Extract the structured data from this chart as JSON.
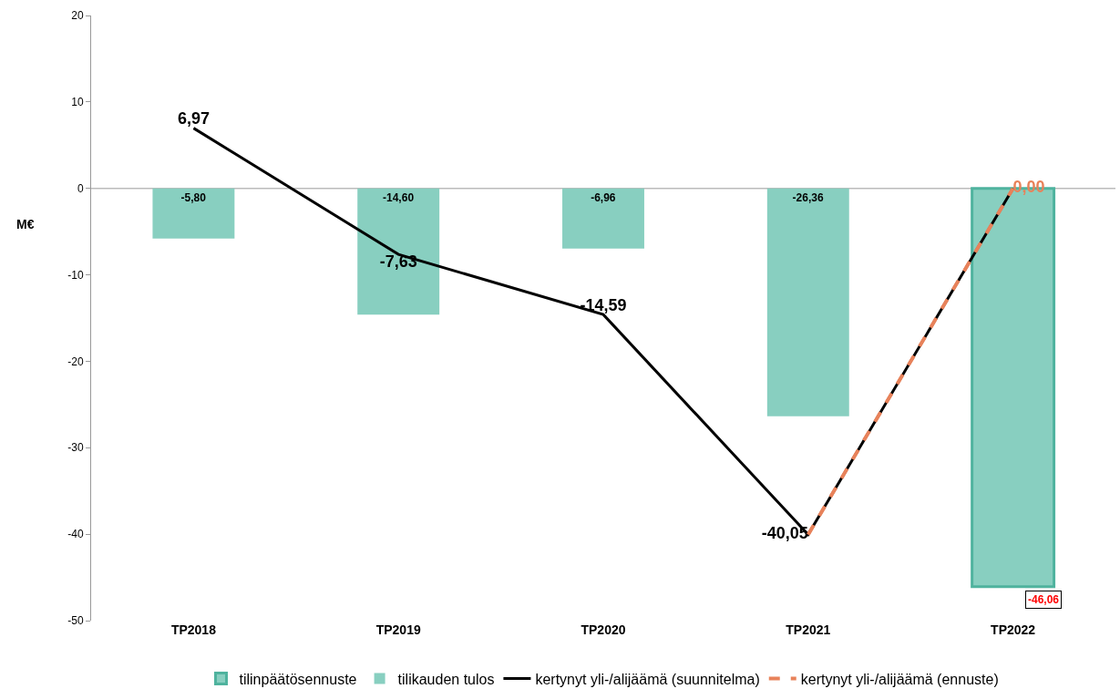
{
  "chart_data": {
    "type": "bar",
    "ylabel": "M€",
    "categories": [
      "TP2018",
      "TP2019",
      "TP2020",
      "TP2021",
      "TP2022"
    ],
    "series": [
      {
        "name": "tilinpäätösennuste",
        "color": "#88cfc0",
        "values": [
          null,
          null,
          null,
          null,
          -46.06
        ],
        "value_labels": [
          null,
          null,
          null,
          null,
          "-46,06"
        ]
      },
      {
        "name": "tilikauden tulos",
        "color": "#88cfc0",
        "values": [
          -5.8,
          -14.6,
          -6.96,
          -26.36,
          null
        ],
        "value_labels": [
          "-5,80",
          "-14,60",
          "-6,96",
          "-26,36",
          null
        ]
      },
      {
        "name": "kertynyt yli-/alijäämä (suunnitelma)",
        "type": "line",
        "color": "#000000",
        "line_style": "solid",
        "values": [
          6.97,
          -7.63,
          -14.59,
          -40.05,
          0.0
        ],
        "value_labels": [
          "6,97",
          "-7,63",
          "-14,59",
          "-40,05",
          null
        ]
      },
      {
        "name": "kertynyt yli-/alijäämä (ennuste)",
        "type": "line",
        "color": "#e8825a",
        "line_style": "dashed",
        "values": [
          null,
          null,
          null,
          -40.05,
          0.0
        ],
        "value_labels": [
          null,
          null,
          null,
          null,
          "0,00"
        ]
      }
    ],
    "ylim": [
      -50,
      20
    ],
    "yticks": [
      -50,
      -40,
      -30,
      -20,
      -10,
      0,
      10,
      20
    ],
    "grid": false,
    "ref_lines": [
      {
        "axis": "y",
        "value": 0,
        "color": "#bbbbbb"
      }
    ],
    "legend": "bottom",
    "marker": "none"
  }
}
